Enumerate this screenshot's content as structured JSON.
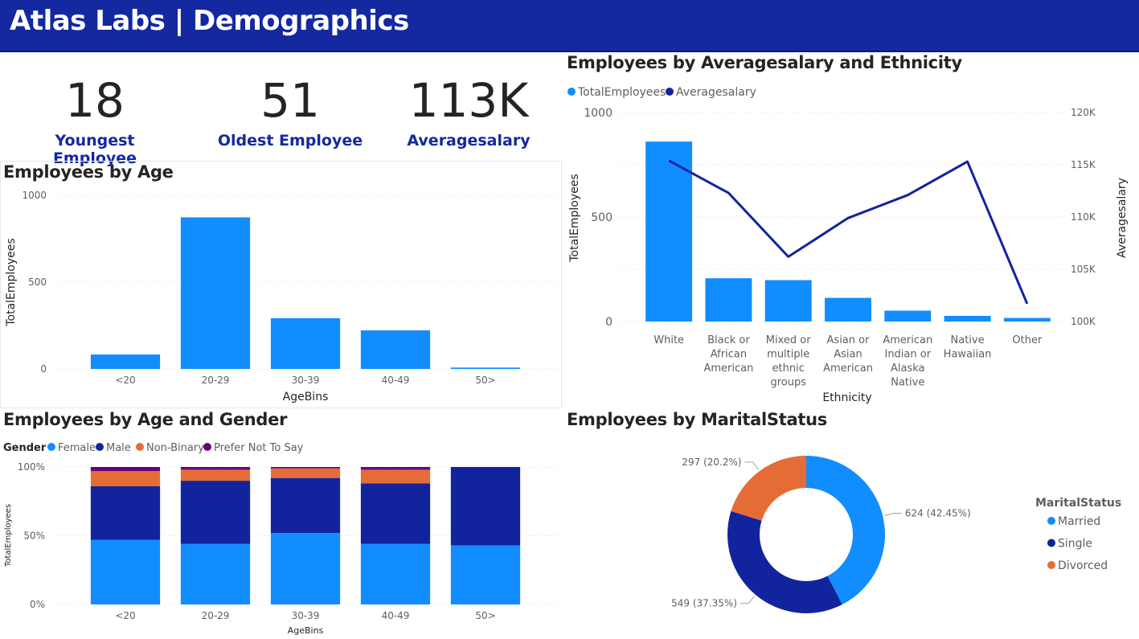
{
  "header": {
    "title": "Atlas Labs | Demographics"
  },
  "kpis": [
    {
      "value": "18",
      "label": "Youngest Employee"
    },
    {
      "value": "51",
      "label": "Oldest Employee"
    },
    {
      "value": "113K",
      "label": "Averagesalary"
    }
  ],
  "colors": {
    "header": "#1428a0",
    "light_blue": "#118dff",
    "dark_blue": "#12239e",
    "orange": "#e66c37",
    "purple": "#6b007b"
  },
  "chart_data": [
    {
      "id": "age",
      "type": "bar",
      "title": "Employees by Age",
      "xlabel": "AgeBins",
      "ylabel": "TotalEmployees",
      "ylim": [
        0,
        1000
      ],
      "yticks": [
        "0",
        "500",
        "1000"
      ],
      "categories": [
        "<20",
        "20-29",
        "30-39",
        "40-49",
        "50>"
      ],
      "values": [
        83,
        873,
        292,
        222,
        8
      ],
      "grid": true
    },
    {
      "id": "ethnicity",
      "type": "bar",
      "title": "Employees by Averagesalary and Ethnicity",
      "xlabel": "Ethnicity",
      "ylabel": "TotalEmployees",
      "y2label": "Averagesalary",
      "ylim": [
        0,
        1000
      ],
      "y2lim": [
        100000,
        120000
      ],
      "yticks": [
        "0",
        "500",
        "1000"
      ],
      "y2ticks": [
        "100K",
        "105K",
        "110K",
        "115K",
        "120K"
      ],
      "legend_position": "top-left",
      "categories": [
        "White",
        "Black or African American",
        "Mixed or multiple ethnic groups",
        "Asian or Asian American",
        "American Indian or Alaska Native",
        "Native Hawaiian",
        "Other"
      ],
      "series": [
        {
          "name": "TotalEmployees",
          "type": "bar",
          "values": [
            861,
            207,
            198,
            113,
            52,
            27,
            17
          ]
        },
        {
          "name": "Averagesalary",
          "type": "line",
          "values": [
            115400,
            112300,
            106200,
            109900,
            112100,
            115300,
            101700
          ]
        }
      ]
    },
    {
      "id": "age_gender",
      "type": "bar",
      "stacked": "percent",
      "title": "Employees by Age and Gender",
      "xlabel": "AgeBins",
      "ylabel": "TotalEmployees",
      "ylim": [
        0,
        100
      ],
      "yticks": [
        "0%",
        "50%",
        "100%"
      ],
      "legend_title": "Gender",
      "legend_position": "top-left",
      "categories": [
        "<20",
        "20-29",
        "30-39",
        "40-49",
        "50>"
      ],
      "series": [
        {
          "name": "Female",
          "values": [
            47,
            44,
            52,
            44,
            43
          ]
        },
        {
          "name": "Male",
          "values": [
            39,
            46,
            40,
            44,
            57
          ]
        },
        {
          "name": "Non-Binary",
          "values": [
            11,
            8,
            7,
            10,
            0
          ]
        },
        {
          "name": "Prefer Not To Say",
          "values": [
            3,
            2,
            1,
            2,
            0
          ]
        }
      ]
    },
    {
      "id": "marital",
      "type": "pie",
      "donut": true,
      "title": "Employees by MaritalStatus",
      "legend_title": "MaritalStatus",
      "legend_position": "right",
      "categories": [
        "Married",
        "Single",
        "Divorced"
      ],
      "values": [
        624,
        549,
        297
      ],
      "data_labels": [
        "624 (42.45%)",
        "549 (37.35%)",
        "297 (20.2%)"
      ]
    }
  ]
}
